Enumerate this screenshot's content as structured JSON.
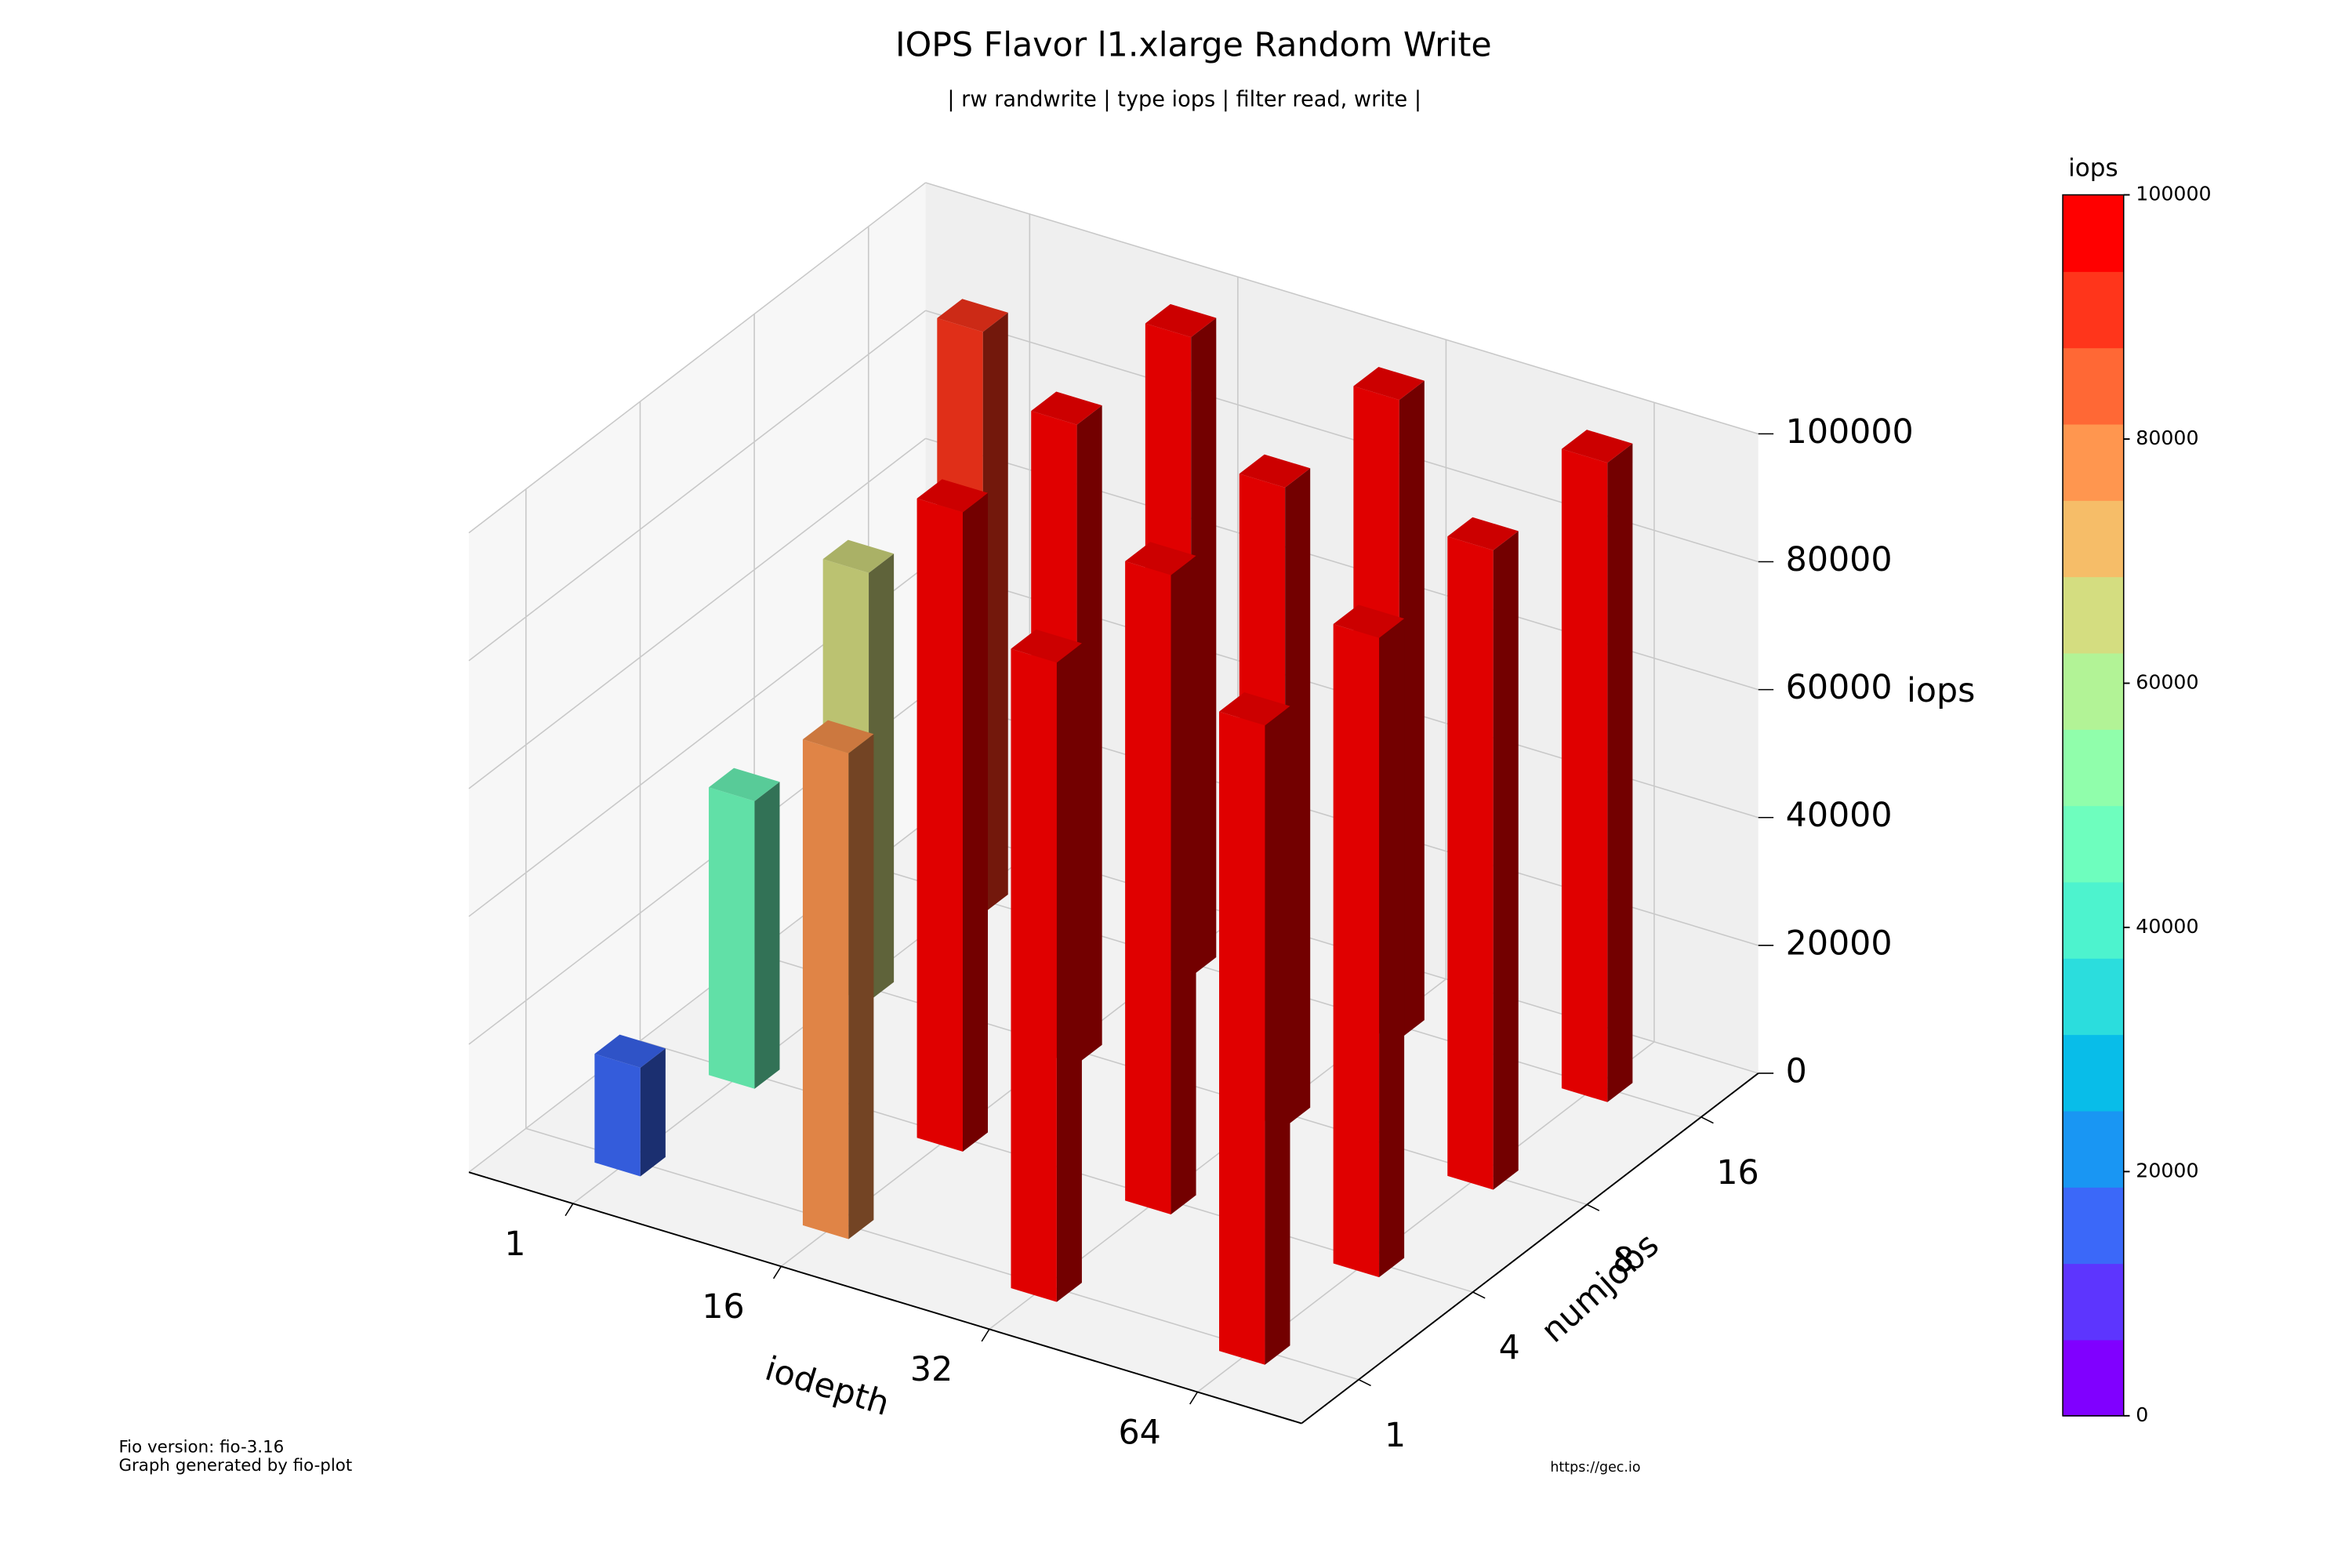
{
  "chart_data": {
    "type": "bar3d",
    "title": "IOPS Flavor l1.xlarge Random Write",
    "subtitle": "| rw randwrite | type iops | filter read, write |",
    "x_label": "iodepth",
    "y_label": "numjobs",
    "z_label": "iops",
    "categories": [
      "1",
      "16",
      "32",
      "64"
    ],
    "y_categories": [
      "1",
      "4",
      "8",
      "16"
    ],
    "values": [
      [
        17000,
        76000,
        100000,
        100000
      ],
      [
        45000,
        100000,
        100000,
        100000
      ],
      [
        67000,
        100000,
        100000,
        100000
      ],
      [
        91000,
        100000,
        100000,
        100000
      ]
    ],
    "zlim": [
      0,
      100000
    ],
    "zticks": [
      0,
      20000,
      40000,
      60000,
      80000,
      100000
    ],
    "grid": true,
    "colorbar": {
      "title": "iops",
      "lim": [
        0,
        100000
      ],
      "ticks": [
        0,
        20000,
        40000,
        60000,
        80000,
        100000
      ],
      "colors": [
        "#8000ff",
        "#5d35fe",
        "#3b68f9",
        "#1996f3",
        "#08bde9",
        "#2bdddd",
        "#4df3ce",
        "#6efebe",
        "#90feab",
        "#b2f396",
        "#d4dd80",
        "#f6bd68",
        "#ff964f",
        "#ff6835",
        "#ff351b",
        "#ff0000"
      ]
    }
  },
  "footer": {
    "version": "Fio version: fio-3.16",
    "generator": "Graph generated by fio-plot",
    "url": "https://gec.io"
  }
}
